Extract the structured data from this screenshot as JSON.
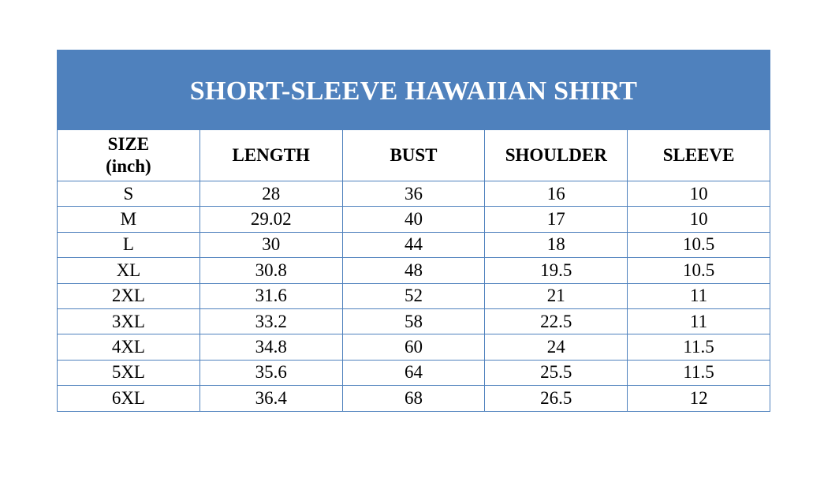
{
  "title": "SHORT-SLEEVE HAWAIIAN SHIRT",
  "colors": {
    "header_bg": "#4f81bd",
    "border": "#4f81bd"
  },
  "columns": [
    "SIZE",
    "LENGTH",
    "BUST",
    "SHOULDER",
    "SLEEVE"
  ],
  "size_unit": "(inch)",
  "rows": [
    [
      "S",
      "28",
      "36",
      "16",
      "10"
    ],
    [
      "M",
      "29.02",
      "40",
      "17",
      "10"
    ],
    [
      "L",
      "30",
      "44",
      "18",
      "10.5"
    ],
    [
      "XL",
      "30.8",
      "48",
      "19.5",
      "10.5"
    ],
    [
      "2XL",
      "31.6",
      "52",
      "21",
      "11"
    ],
    [
      "3XL",
      "33.2",
      "58",
      "22.5",
      "11"
    ],
    [
      "4XL",
      "34.8",
      "60",
      "24",
      "11.5"
    ],
    [
      "5XL",
      "35.6",
      "64",
      "25.5",
      "11.5"
    ],
    [
      "6XL",
      "36.4",
      "68",
      "26.5",
      "12"
    ]
  ]
}
